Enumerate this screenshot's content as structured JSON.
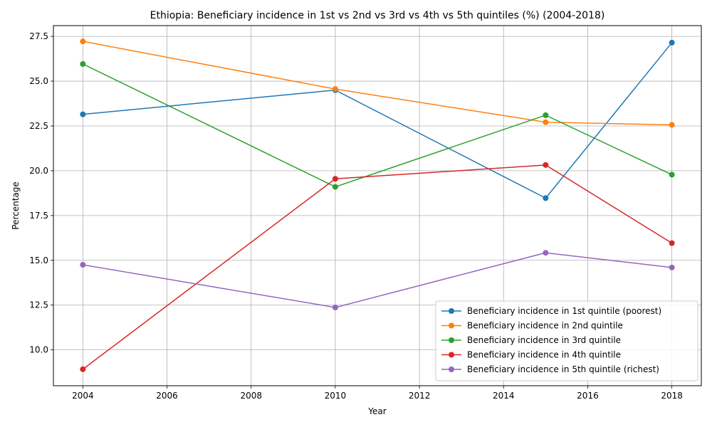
{
  "chart_data": {
    "type": "line",
    "title": "Ethiopia: Beneficiary incidence in 1st vs 2nd vs 3rd vs 4th vs 5th quintiles  (%) (2004-2018)",
    "xlabel": "Year",
    "ylabel": "Percentage",
    "xlim": [
      2003.3,
      2018.7
    ],
    "ylim": [
      8.0,
      28.1
    ],
    "xticks": [
      2004,
      2006,
      2008,
      2010,
      2012,
      2014,
      2016,
      2018
    ],
    "xtick_labels": [
      "2004",
      "2006",
      "2008",
      "2010",
      "2012",
      "2014",
      "2016",
      "2018"
    ],
    "yticks": [
      10.0,
      12.5,
      15.0,
      17.5,
      20.0,
      22.5,
      25.0,
      27.5
    ],
    "ytick_labels": [
      "10.0",
      "12.5",
      "15.0",
      "17.5",
      "20.0",
      "22.5",
      "25.0",
      "27.5"
    ],
    "grid": true,
    "legend_position": "lower-right",
    "x": [
      2004,
      2010,
      2015,
      2018
    ],
    "series": [
      {
        "name": "Beneficiary incidence in 1st quintile (poorest)",
        "color": "#1f77b4",
        "values": [
          23.15,
          24.5,
          18.47,
          27.15
        ]
      },
      {
        "name": "Beneficiary incidence in 2nd quintile",
        "color": "#ff7f0e",
        "values": [
          27.22,
          24.56,
          22.71,
          22.56
        ]
      },
      {
        "name": "Beneficiary incidence in 3rd quintile",
        "color": "#2ca02c",
        "values": [
          25.96,
          19.1,
          23.1,
          19.78
        ]
      },
      {
        "name": "Beneficiary incidence in 4th quintile",
        "color": "#d62728",
        "values": [
          8.92,
          19.55,
          20.32,
          15.96
        ]
      },
      {
        "name": "Beneficiary incidence in 5th quintile (richest)",
        "color": "#9467bd",
        "values": [
          14.75,
          12.37,
          15.42,
          14.6
        ]
      }
    ]
  }
}
